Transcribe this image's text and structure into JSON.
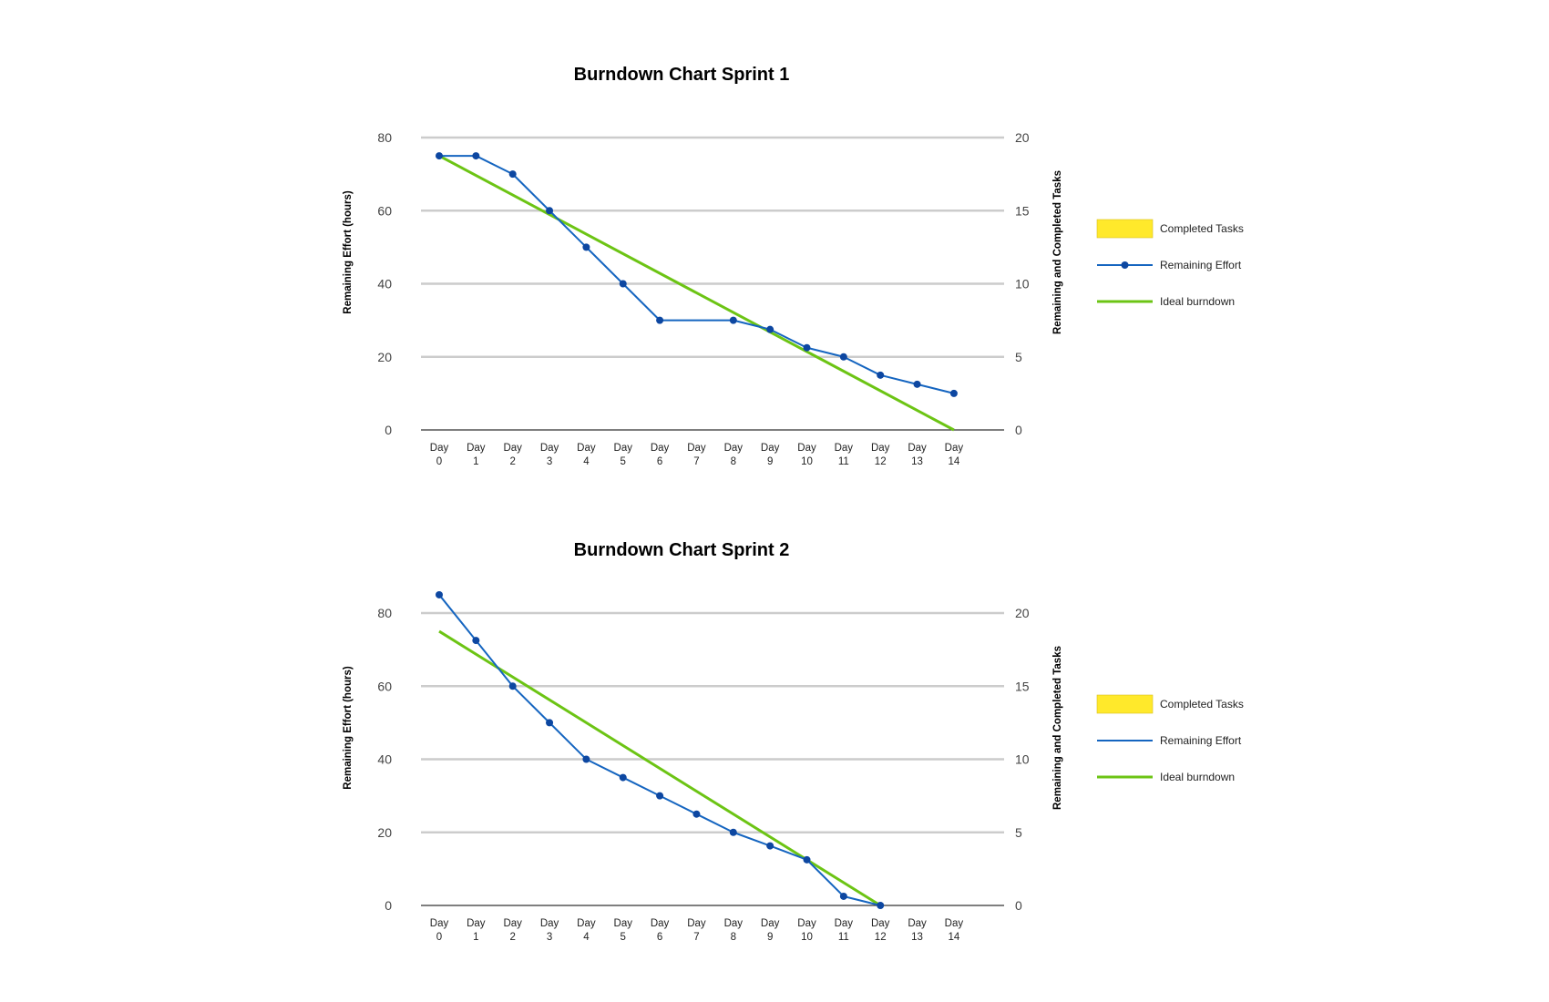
{
  "chart_data": [
    {
      "type": "line",
      "title": "Burndown Chart Sprint 1",
      "ylabel": "Remaining Effort (hours)",
      "y2label": "Remaining and Completed Tasks",
      "ylim": [
        0,
        80
      ],
      "yticks": [
        0,
        20,
        40,
        60,
        80
      ],
      "y2lim": [
        0,
        20
      ],
      "y2ticks": [
        0,
        5,
        10,
        15,
        20
      ],
      "categories": [
        "Day 0",
        "Day 1",
        "Day 2",
        "Day 3",
        "Day 4",
        "Day 5",
        "Day 6",
        "Day 7",
        "Day 8",
        "Day 9",
        "Day 10",
        "Day 11",
        "Day 12",
        "Day 13",
        "Day 14"
      ],
      "grid": true,
      "legend_position": "right",
      "legend": [
        {
          "label": "Completed Tasks",
          "kind": "box",
          "color": "#FFE92B"
        },
        {
          "label": "Remaining Effort",
          "kind": "line-marker",
          "color": "#1565C0"
        },
        {
          "label": "Ideal burndown",
          "kind": "line",
          "color": "#6CC414"
        }
      ],
      "series": [
        {
          "name": "Remaining Effort",
          "color": "#1565C0",
          "markers": true,
          "values": [
            75,
            75,
            70,
            60,
            50,
            40,
            30,
            null,
            30,
            27.5,
            22.5,
            20,
            15,
            12.5,
            10
          ]
        },
        {
          "name": "Ideal burndown",
          "color": "#6CC414",
          "markers": false,
          "values": [
            75,
            null,
            null,
            null,
            null,
            null,
            null,
            null,
            null,
            null,
            null,
            null,
            null,
            null,
            0
          ]
        }
      ]
    },
    {
      "type": "line",
      "title": "Burndown Chart Sprint 2",
      "ylabel": "Remaining Effort (hours)",
      "y2label": "Remaining and Completed Tasks",
      "ylim": [
        0,
        80
      ],
      "yticks": [
        0,
        20,
        40,
        60,
        80
      ],
      "y2lim": [
        0,
        20
      ],
      "y2ticks": [
        0,
        5,
        10,
        15,
        20
      ],
      "categories": [
        "Day 0",
        "Day 1",
        "Day 2",
        "Day 3",
        "Day 4",
        "Day 5",
        "Day 6",
        "Day 7",
        "Day 8",
        "Day 9",
        "Day 10",
        "Day 11",
        "Day 12",
        "Day 13",
        "Day 14"
      ],
      "grid": true,
      "legend_position": "right",
      "legend": [
        {
          "label": "Completed Tasks",
          "kind": "box",
          "color": "#FFE92B"
        },
        {
          "label": "Remaining Effort",
          "kind": "line",
          "color": "#1565C0"
        },
        {
          "label": "Ideal burndown",
          "kind": "line",
          "color": "#6CC414"
        }
      ],
      "series": [
        {
          "name": "Remaining Effort",
          "color": "#1565C0",
          "markers": true,
          "values": [
            85,
            72.5,
            60,
            50,
            40,
            35,
            30,
            25,
            20,
            16.3,
            12.5,
            2.5,
            0,
            null,
            null
          ]
        },
        {
          "name": "Ideal burndown",
          "color": "#6CC414",
          "markers": false,
          "values": [
            75,
            null,
            null,
            null,
            null,
            null,
            null,
            null,
            null,
            null,
            null,
            null,
            0,
            null,
            null
          ]
        }
      ]
    }
  ]
}
